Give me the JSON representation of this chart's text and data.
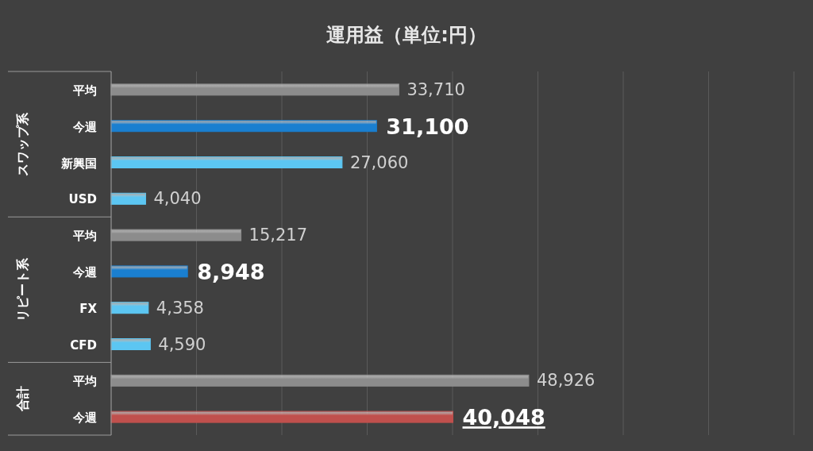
{
  "chart_data": {
    "type": "bar",
    "orientation": "horizontal",
    "title": "運用益（単位:円）",
    "categories": [
      "平均",
      "今週",
      "新興国",
      "USD",
      "平均",
      "今週",
      "FX",
      "CFD",
      "平均",
      "今週"
    ],
    "values": [
      33710,
      31100,
      27060,
      4040,
      15217,
      8948,
      4358,
      4590,
      48926,
      40048
    ],
    "colors": [
      "#8c8c8c",
      "#1a7fd0",
      "#5cc6f2",
      "#5cc6f2",
      "#8c8c8c",
      "#1a7fd0",
      "#5cc6f2",
      "#5cc6f2",
      "#8c8c8c",
      "#c0504d"
    ],
    "value_labels": [
      "33,710",
      "31,100",
      "27,060",
      "4,040",
      "15,217",
      "8,948",
      "4,358",
      "4,590",
      "48,926",
      "40,048"
    ],
    "annotations": [
      "スワップ系",
      "リピート系",
      "合計"
    ],
    "xlim": [
      0,
      80000
    ],
    "xticks": [
      {
        "value": 0,
        "label": null
      },
      {
        "value": 10000,
        "label": null
      },
      {
        "value": 20000,
        "label": null
      },
      {
        "value": 30000,
        "label": null
      },
      {
        "value": 40000,
        "label": null
      },
      {
        "value": 50000,
        "label": null
      },
      {
        "value": 60000,
        "label": null
      },
      {
        "value": 70000,
        "label": null
      },
      {
        "value": 80000,
        "label": null
      }
    ],
    "grid": "x",
    "tick_labels": "y"
  }
}
